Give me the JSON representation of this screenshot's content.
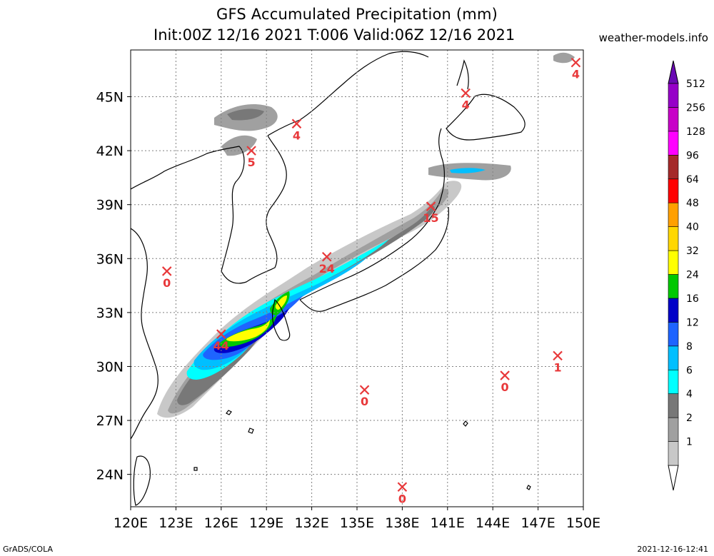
{
  "header": {
    "title_line1": "GFS Accumulated Precipitation (mm)",
    "title_line2": "Init:00Z 12/16 2021 T:006 Valid:06Z 12/16 2021",
    "site": "weather-models.info"
  },
  "footer": {
    "left": "GrADS/COLA",
    "right": "2021-12-16-12:41"
  },
  "map": {
    "lon_ticks": [
      "120E",
      "123E",
      "126E",
      "129E",
      "132E",
      "135E",
      "138E",
      "141E",
      "144E",
      "147E",
      "150E"
    ],
    "lat_ticks": [
      "45N",
      "42N",
      "39N",
      "36N",
      "33N",
      "30N",
      "27N",
      "24N"
    ],
    "stations": [
      {
        "value": "4",
        "lon": 149.5,
        "lat": 46.9
      },
      {
        "value": "4",
        "lon": 142.2,
        "lat": 45.2
      },
      {
        "value": "4",
        "lon": 131.0,
        "lat": 43.5
      },
      {
        "value": "5",
        "lon": 128.0,
        "lat": 42.0
      },
      {
        "value": "15",
        "lon": 139.9,
        "lat": 38.9
      },
      {
        "value": "24",
        "lon": 133.0,
        "lat": 36.1
      },
      {
        "value": "0",
        "lon": 122.4,
        "lat": 35.3
      },
      {
        "value": "44",
        "lon": 126.0,
        "lat": 31.8
      },
      {
        "value": "0",
        "lon": 135.5,
        "lat": 28.7
      },
      {
        "value": "0",
        "lon": 144.8,
        "lat": 29.5
      },
      {
        "value": "1",
        "lon": 148.3,
        "lat": 30.6
      },
      {
        "value": "0",
        "lon": 138.0,
        "lat": 23.3
      }
    ]
  },
  "colorbar": {
    "levels": [
      {
        "label": "1",
        "color": "#c8c8c8"
      },
      {
        "label": "2",
        "color": "#a0a0a0"
      },
      {
        "label": "4",
        "color": "#787878"
      },
      {
        "label": "6",
        "color": "#00ffff"
      },
      {
        "label": "8",
        "color": "#00bfff"
      },
      {
        "label": "12",
        "color": "#1e64ff"
      },
      {
        "label": "16",
        "color": "#0000c8"
      },
      {
        "label": "24",
        "color": "#00c800"
      },
      {
        "label": "32",
        "color": "#ffff00"
      },
      {
        "label": "40",
        "color": "#ffd700"
      },
      {
        "label": "48",
        "color": "#ffa000"
      },
      {
        "label": "64",
        "color": "#ff0000"
      },
      {
        "label": "96",
        "color": "#a52a2a"
      },
      {
        "label": "128",
        "color": "#ff00ff"
      },
      {
        "label": "256",
        "color": "#c800c8"
      },
      {
        "label": "512",
        "color": "#9600c8"
      }
    ],
    "top_color": "#6a0ab4"
  }
}
